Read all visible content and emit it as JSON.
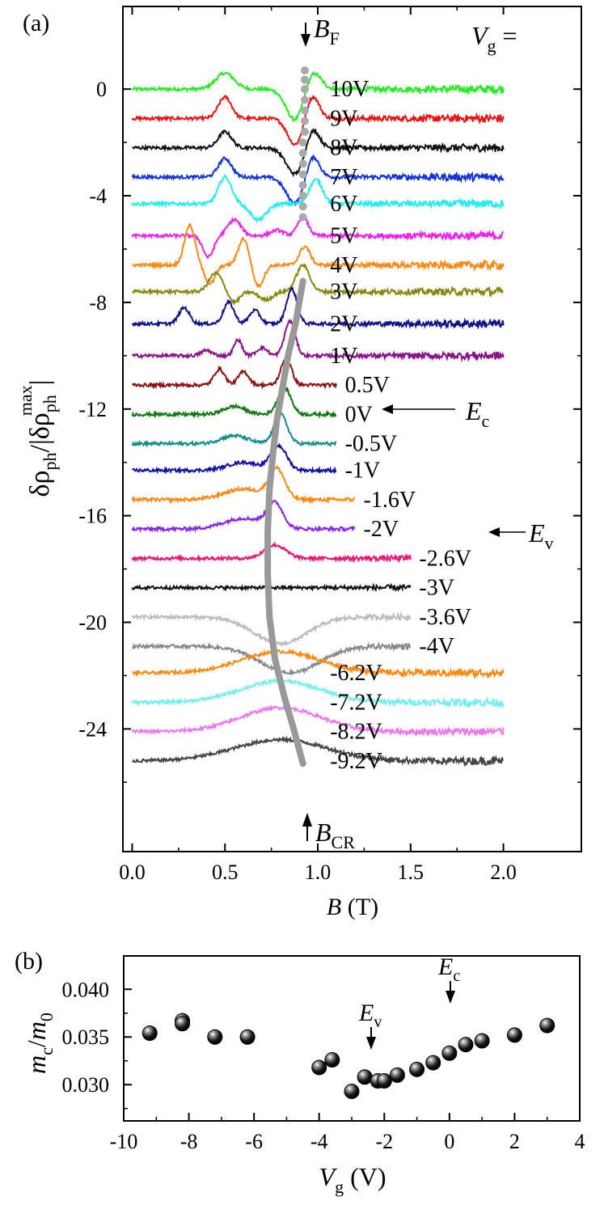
{
  "panel_a": {
    "label": "(a)",
    "ylabel": {
      "main": "δρ",
      "sub1": "ph",
      "mid": "/|δρ",
      "sub2": "ph",
      "sup": "max",
      "tail": "|"
    },
    "xlabel": {
      "var": "B",
      "unit": " (T)"
    },
    "vg_header": {
      "var": "V",
      "sub": "g",
      "tail": " ="
    },
    "bf_marker": {
      "var": "B",
      "sub": "F"
    },
    "bcr_marker": {
      "var": "B",
      "sub": "CR"
    },
    "ec_arrow": {
      "var": "E",
      "sub": "c"
    },
    "ev_arrow": {
      "var": "E",
      "sub": "v"
    }
  },
  "panel_b": {
    "label": "(b)",
    "ylabel": {
      "var1": "m",
      "sub1": "c",
      "mid": "/",
      "var2": "m",
      "sub2": "0"
    },
    "xlabel": {
      "var": "V",
      "sub": "g",
      "unit": " (V)"
    },
    "ev_label": {
      "var": "E",
      "sub": "v"
    },
    "ec_label": {
      "var": "E",
      "sub": "c"
    }
  },
  "chart_data": [
    {
      "type": "line",
      "panel": "(a)",
      "xlabel": "B (T)",
      "ylabel": "δρph/|δρph max|",
      "xlim": [
        -0.05,
        2.42
      ],
      "ylim": [
        -28.6,
        3.1
      ],
      "xticks": [
        "0.0",
        "0.5",
        "1.0",
        "1.5",
        "2.0"
      ],
      "yticks": [
        "0",
        "-4",
        "-8",
        "-12",
        "-16",
        "-20",
        "-24"
      ],
      "series": [
        {
          "name": "10V",
          "color": "#22ee22",
          "offset": 0,
          "xmax": 2.0,
          "peaks": [
            [
              0.5,
              0.6,
              0.07
            ],
            [
              0.88,
              -1.2,
              0.07
            ],
            [
              0.97,
              0.75,
              0.06
            ]
          ]
        },
        {
          "name": "9V",
          "color": "#ee1111",
          "offset": -1.1,
          "xmax": 2.0,
          "peaks": [
            [
              0.5,
              0.8,
              0.05
            ],
            [
              0.88,
              -1.0,
              0.06
            ],
            [
              0.97,
              0.9,
              0.05
            ]
          ]
        },
        {
          "name": "8V",
          "color": "#111111",
          "offset": -2.2,
          "xmax": 2.0,
          "peaks": [
            [
              0.5,
              0.6,
              0.05
            ],
            [
              0.88,
              -1.0,
              0.07
            ],
            [
              0.97,
              0.8,
              0.05
            ]
          ]
        },
        {
          "name": "7V",
          "color": "#1133dd",
          "offset": -3.3,
          "xmax": 2.0,
          "peaks": [
            [
              0.5,
              0.7,
              0.05
            ],
            [
              0.88,
              -1.0,
              0.07
            ],
            [
              0.97,
              0.9,
              0.05
            ]
          ]
        },
        {
          "name": "6V",
          "color": "#22eeee",
          "offset": -4.3,
          "xmax": 2.0,
          "peaks": [
            [
              0.5,
              1.0,
              0.05
            ],
            [
              0.68,
              -0.6,
              0.06
            ],
            [
              0.99,
              0.9,
              0.05
            ]
          ]
        },
        {
          "name": "5V",
          "color": "#ee22ee",
          "offset": -5.5,
          "xmax": 2.0,
          "peaks": [
            [
              0.41,
              -0.8,
              0.04
            ],
            [
              0.55,
              0.6,
              0.05
            ],
            [
              0.78,
              0.2,
              0.05
            ],
            [
              0.92,
              0.7,
              0.04
            ]
          ]
        },
        {
          "name": "4V",
          "color": "#ff8811",
          "offset": -6.6,
          "xmax": 2.0,
          "peaks": [
            [
              0.31,
              1.5,
              0.04
            ],
            [
              0.42,
              -0.7,
              0.04
            ],
            [
              0.6,
              1.0,
              0.04
            ],
            [
              0.68,
              -0.8,
              0.04
            ],
            [
              0.93,
              0.7,
              0.04
            ]
          ]
        },
        {
          "name": "3V",
          "color": "#888811",
          "offset": -7.6,
          "xmax": 2.0,
          "peaks": [
            [
              0.45,
              0.7,
              0.05
            ],
            [
              0.55,
              -0.4,
              0.04
            ],
            [
              0.72,
              -0.3,
              0.05
            ],
            [
              0.92,
              1.0,
              0.05
            ]
          ]
        },
        {
          "name": "2V",
          "color": "#11118b",
          "offset": -8.8,
          "xmax": 2.0,
          "peaks": [
            [
              0.28,
              0.6,
              0.04
            ],
            [
              0.52,
              0.8,
              0.04
            ],
            [
              0.66,
              0.5,
              0.04
            ],
            [
              0.86,
              1.3,
              0.04
            ]
          ]
        },
        {
          "name": "1V",
          "color": "#8b118b",
          "offset": -10.0,
          "xmax": 2.0,
          "peaks": [
            [
              0.4,
              0.2,
              0.04
            ],
            [
              0.57,
              0.6,
              0.03
            ],
            [
              0.7,
              0.3,
              0.04
            ],
            [
              0.85,
              1.3,
              0.04
            ]
          ]
        },
        {
          "name": "0.5V",
          "color": "#8b1111",
          "offset": -11.1,
          "xmax": 1.1,
          "peaks": [
            [
              0.47,
              0.6,
              0.04
            ],
            [
              0.6,
              0.5,
              0.04
            ],
            [
              0.83,
              1.0,
              0.04
            ]
          ]
        },
        {
          "name": "0V",
          "color": "#117711",
          "offset": -12.2,
          "xmax": 1.1,
          "peaks": [
            [
              0.55,
              0.3,
              0.08
            ],
            [
              0.82,
              1.0,
              0.05
            ]
          ]
        },
        {
          "name": "-0.5V",
          "color": "#118b8b",
          "offset": -13.3,
          "xmax": 1.1,
          "peaks": [
            [
              0.55,
              0.3,
              0.1
            ],
            [
              0.8,
              1.1,
              0.05
            ]
          ]
        },
        {
          "name": "-1V",
          "color": "#1111aa",
          "offset": -14.3,
          "xmax": 1.1,
          "peaks": [
            [
              0.6,
              0.3,
              0.12
            ],
            [
              0.79,
              0.9,
              0.06
            ]
          ]
        },
        {
          "name": "-1.6V",
          "color": "#ff8811",
          "offset": -15.4,
          "xmax": 1.2,
          "peaks": [
            [
              0.6,
              0.4,
              0.15
            ],
            [
              0.78,
              1.1,
              0.06
            ]
          ]
        },
        {
          "name": "-2V",
          "color": "#8822ee",
          "offset": -16.5,
          "xmax": 1.2,
          "peaks": [
            [
              0.6,
              0.4,
              0.15
            ],
            [
              0.77,
              0.9,
              0.06
            ]
          ]
        },
        {
          "name": "-2.6V",
          "color": "#ee1177",
          "offset": -17.6,
          "xmax": 1.5,
          "peaks": [
            [
              0.77,
              0.5,
              0.08
            ]
          ]
        },
        {
          "name": "-3V",
          "color": "#111111",
          "offset": -18.7,
          "xmax": 1.5,
          "peaks": []
        },
        {
          "name": "-3.6V",
          "color": "#bbbbbb",
          "offset": -19.8,
          "xmax": 1.5,
          "peaks": [
            [
              0.8,
              -1.0,
              0.2
            ]
          ]
        },
        {
          "name": "-4V",
          "color": "#888888",
          "offset": -20.9,
          "xmax": 1.5,
          "peaks": [
            [
              0.85,
              -1.0,
              0.22
            ]
          ]
        },
        {
          "name": "-6.2V",
          "color": "#ff8811",
          "offset": -21.9,
          "xmax": 2.0,
          "peaks": [
            [
              0.8,
              0.8,
              0.3
            ]
          ]
        },
        {
          "name": "-7.2V",
          "color": "#77eeee",
          "offset": -23.0,
          "xmax": 2.0,
          "peaks": [
            [
              0.8,
              0.8,
              0.3
            ]
          ]
        },
        {
          "name": "-8.2V",
          "color": "#ee77ee",
          "offset": -24.1,
          "xmax": 2.0,
          "peaks": [
            [
              0.8,
              0.9,
              0.3
            ]
          ]
        },
        {
          "name": "-9.2V",
          "color": "#444444",
          "offset": -25.2,
          "xmax": 2.0,
          "peaks": [
            [
              0.8,
              0.8,
              0.35
            ]
          ]
        }
      ],
      "series_label_x": {
        "10V": 1.04,
        "9V": 1.04,
        "8V": 1.04,
        "7V": 1.04,
        "6V": 1.04,
        "5V": 1.04,
        "4V": 1.04,
        "3V": 1.04,
        "2V": 1.04,
        "1V": 1.04,
        "0.5V": 1.12,
        "0V": 1.12,
        "-0.5V": 1.12,
        "-1V": 1.12,
        "-1.6V": 1.22,
        "-2V": 1.22,
        "-2.6V": 1.52,
        "-3V": 1.52,
        "-3.6V": 1.52,
        "-4V": 1.52,
        "-6.2V": 1.04,
        "-7.2V": 1.04,
        "-8.2V": 1.04,
        "-9.2V": 1.04
      },
      "bf_points": [
        [
          0.93,
          0.7
        ],
        [
          0.93,
          0.35
        ],
        [
          0.93,
          0.0
        ],
        [
          0.93,
          -0.4
        ],
        [
          0.93,
          -0.8
        ],
        [
          0.93,
          -1.2
        ],
        [
          0.93,
          -1.6
        ],
        [
          0.92,
          -2.0
        ],
        [
          0.92,
          -2.4
        ],
        [
          0.92,
          -2.8
        ],
        [
          0.92,
          -3.2
        ],
        [
          0.92,
          -3.6
        ],
        [
          0.92,
          -4.0
        ],
        [
          0.92,
          -4.4
        ],
        [
          0.92,
          -4.8
        ]
      ],
      "bcr_curve": [
        [
          0.92,
          -7.2
        ],
        [
          0.88,
          -8.8
        ],
        [
          0.84,
          -10.0
        ],
        [
          0.81,
          -11.2
        ],
        [
          0.78,
          -12.4
        ],
        [
          0.76,
          -13.6
        ],
        [
          0.74,
          -15.0
        ],
        [
          0.73,
          -16.6
        ],
        [
          0.73,
          -18.2
        ],
        [
          0.74,
          -19.8
        ],
        [
          0.77,
          -21.4
        ],
        [
          0.82,
          -22.8
        ],
        [
          0.87,
          -24.0
        ],
        [
          0.92,
          -25.3
        ]
      ]
    },
    {
      "type": "scatter",
      "panel": "(b)",
      "xlabel": "Vg (V)",
      "ylabel": "mc/m0",
      "xlim": [
        -10,
        4
      ],
      "ylim": [
        0.0262,
        0.0435
      ],
      "xticks": [
        "-10",
        "-8",
        "-6",
        "-4",
        "-2",
        "0",
        "2",
        "4"
      ],
      "yticks": [
        "0.030",
        "0.035",
        "0.040"
      ],
      "x": [
        -9.2,
        -8.2,
        -8.2,
        -7.2,
        -6.2,
        -4.0,
        -3.6,
        -3.0,
        -2.6,
        -2.2,
        -2.0,
        -1.6,
        -1.0,
        -0.5,
        0.0,
        0.5,
        1.0,
        2.0,
        3.0
      ],
      "y": [
        0.0354,
        0.0367,
        0.0364,
        0.035,
        0.035,
        0.0318,
        0.0326,
        0.0293,
        0.0308,
        0.0304,
        0.0304,
        0.031,
        0.0316,
        0.0323,
        0.0333,
        0.0342,
        0.0346,
        0.0352,
        0.0362
      ],
      "ev_x": -2.5,
      "ec_x": 0.0
    }
  ]
}
